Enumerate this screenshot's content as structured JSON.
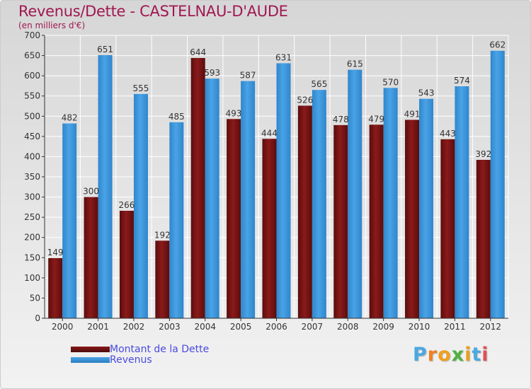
{
  "title": "Revenus/Dette - CASTELNAU-D'AUDE",
  "subtitle": "(en milliers d'€)",
  "logo": {
    "text": "Proxiti",
    "letter_colors": [
      "#4aa8e0",
      "#f08020",
      "#f0a020",
      "#50b040",
      "#e8a020",
      "#4aa8e0",
      "#e05050"
    ]
  },
  "colors": {
    "dette": "#8b1a1a",
    "revenus": "#4aa3e6",
    "axis": "#333333",
    "grid": "#ffffff"
  },
  "chart_data": {
    "type": "bar",
    "title": "Revenus/Dette - CASTELNAU-D'AUDE",
    "subtitle": "(en milliers d'€)",
    "categories": [
      "2000",
      "2001",
      "2002",
      "2003",
      "2004",
      "2005",
      "2006",
      "2007",
      "2008",
      "2009",
      "2010",
      "2011",
      "2012"
    ],
    "series": [
      {
        "name": "Montant de la Dette",
        "values": [
          149,
          300,
          266,
          192,
          644,
          493,
          444,
          526,
          478,
          479,
          491,
          443,
          392
        ]
      },
      {
        "name": "Revenus",
        "values": [
          482,
          651,
          555,
          485,
          593,
          587,
          631,
          565,
          615,
          570,
          543,
          574,
          662
        ]
      }
    ],
    "ylim": [
      0,
      700
    ],
    "yticks": [
      0,
      50,
      100,
      150,
      200,
      250,
      300,
      350,
      400,
      450,
      500,
      550,
      600,
      650,
      700
    ],
    "grid": true,
    "legend": "bottom-left"
  }
}
